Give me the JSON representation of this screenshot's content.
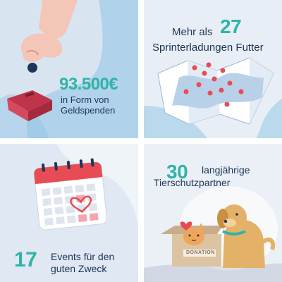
{
  "tiles": {
    "donations": {
      "number": "93.500€",
      "line1": "in Form von",
      "line2": "Geldspenden"
    },
    "food": {
      "prefix": "Mehr als",
      "number": "27",
      "line2": "Sprinterladungen Futter"
    },
    "events": {
      "number": "17",
      "line1": "Events für den",
      "line2": "guten Zweck"
    },
    "partners": {
      "number": "30",
      "line1": "langjährige",
      "line2": "Tierschutzpartner",
      "box_label": "DONATION"
    }
  },
  "colors": {
    "accent": "#2fb4a8",
    "text": "#1d3557",
    "blob_blue": "#8ec3e6",
    "red": "#e74c55"
  },
  "icons": [
    "hand-coin-icon",
    "donation-box-icon",
    "map-pins-icon",
    "calendar-heart-icon",
    "dog-icon",
    "cat-icon",
    "heart-icon"
  ]
}
